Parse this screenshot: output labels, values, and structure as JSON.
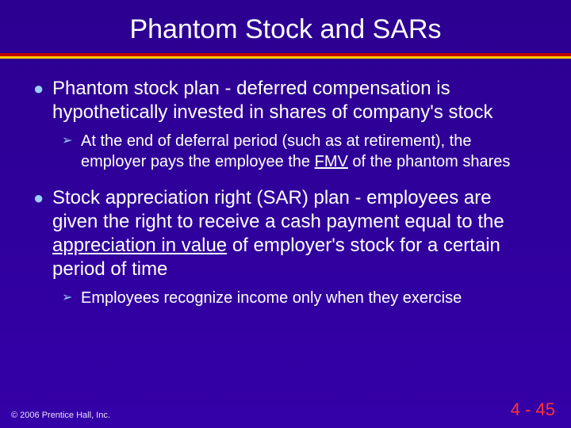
{
  "colors": {
    "background_top": "#2c0090",
    "background_bottom": "#3400a8",
    "rule_red": "#c00000",
    "rule_yellow": "#ffcc00",
    "bullet_marker": "#9ad0ff",
    "text": "#ffffff",
    "pagenum": "#ff3333"
  },
  "typography": {
    "title_fontsize": 34,
    "l1_fontsize": 24,
    "l2_fontsize": 20,
    "footer_fontsize": 11,
    "pagenum_fontsize": 22,
    "family": "Arial"
  },
  "title": "Phantom Stock and SARs",
  "bullets": {
    "b1": {
      "marker": "●",
      "text": "Phantom stock plan - deferred compensation is hypothetically invested in shares of company's stock"
    },
    "b1_sub": {
      "marker": "➢",
      "prefix": "At the end of deferral period (such as at retirement), the employer pays the employee the ",
      "underlined": "FMV",
      "suffix": " of the phantom shares"
    },
    "b2": {
      "marker": "●",
      "prefix": "Stock appreciation right (SAR) plan - employees are given the right to receive a cash payment equal to the ",
      "underlined": "appreciation in value",
      "suffix": " of employer's stock for a certain period of time"
    },
    "b2_sub": {
      "marker": "➢",
      "text": "Employees recognize income only when they exercise"
    }
  },
  "footer": {
    "copyright": "© 2006 Prentice Hall, Inc.",
    "page": "4 - 45"
  }
}
